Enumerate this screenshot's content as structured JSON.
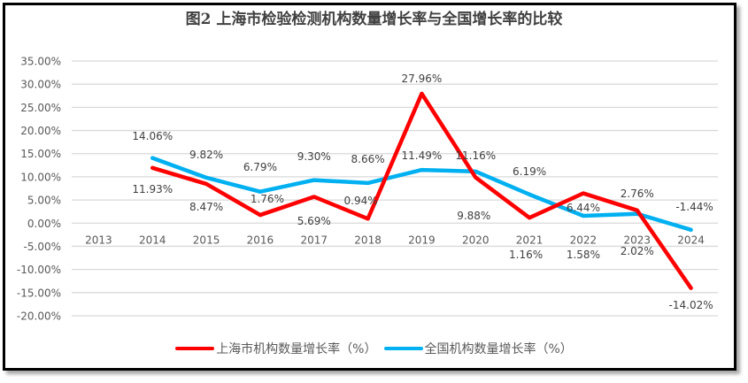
{
  "chart_data": {
    "type": "line",
    "title": "图2 上海市检验检测机构数量增长率与全国增长率的比较",
    "xlabel": "",
    "ylabel": "",
    "categories": [
      "2013",
      "2014",
      "2015",
      "2016",
      "2017",
      "2018",
      "2019",
      "2020",
      "2021",
      "2022",
      "2023",
      "2024"
    ],
    "ylim": [
      -20,
      35
    ],
    "yticks": [
      35,
      30,
      25,
      20,
      15,
      10,
      5,
      0,
      -5,
      -10,
      -15,
      -20
    ],
    "ytick_labels": [
      "35.00%",
      "30.00%",
      "25.00%",
      "20.00%",
      "15.00%",
      "10.00%",
      "5.00%",
      "0.00%",
      "-5.00%",
      "-10.00%",
      "-15.00%",
      "-20.00%"
    ],
    "grid": true,
    "legend_position": "bottom",
    "series": [
      {
        "name": "上海市机构数量增长率（%）",
        "color": "#ff0000",
        "values": [
          null,
          11.93,
          8.47,
          1.76,
          5.69,
          0.94,
          27.96,
          9.88,
          1.16,
          6.44,
          2.76,
          -14.02
        ],
        "labels": [
          "",
          "11.93%",
          "8.47%",
          "1.76%",
          "5.69%",
          "0.94%",
          "27.96%",
          "9.88%",
          "1.16%",
          "6.44%",
          "2.76%",
          "-14.02%"
        ]
      },
      {
        "name": "全国机构数量增长率（%）",
        "color": "#00b0f0",
        "values": [
          null,
          14.06,
          9.82,
          6.79,
          9.3,
          8.66,
          11.49,
          11.16,
          6.19,
          1.58,
          2.02,
          -1.44
        ],
        "labels": [
          "",
          "14.06%",
          "9.82%",
          "6.79%",
          "9.30%",
          "8.66%",
          "11.49%",
          "11.16%",
          "6.19%",
          "1.58%",
          "2.02%",
          "-1.44%"
        ]
      }
    ]
  }
}
